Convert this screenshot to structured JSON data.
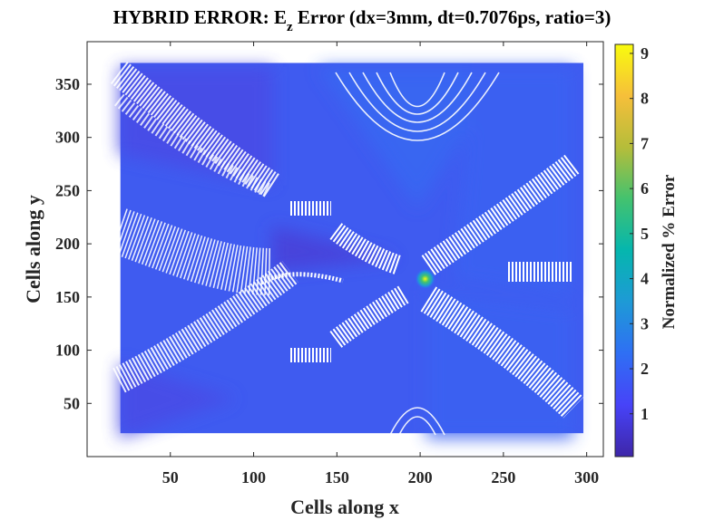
{
  "chart_data": {
    "type": "heatmap",
    "title": {
      "prefix": "HYBRID ERROR: E",
      "subscript": "z",
      "suffix": " Error (dx=3mm, dt=0.7076ps, ratio=3)"
    },
    "xlabel": "Cells along x",
    "ylabel": "Cells along y",
    "xlim": [
      0,
      310
    ],
    "ylim": [
      0,
      390
    ],
    "xticks": [
      50,
      100,
      150,
      200,
      250,
      300
    ],
    "yticks": [
      50,
      100,
      150,
      200,
      250,
      300,
      350
    ],
    "data_extent": {
      "x": [
        20,
        298
      ],
      "y": [
        22,
        370
      ]
    },
    "background_value": 1.4,
    "peak": {
      "x": 203,
      "y": 167,
      "value": 9.2
    },
    "colorbar": {
      "label": "Normalized % Error",
      "ticks": [
        1,
        2,
        3,
        4,
        5,
        6,
        7,
        8,
        9
      ],
      "range": [
        0.05,
        9.2
      ],
      "colormap": [
        "#3e26a8",
        "#4743f8",
        "#2f6ff4",
        "#1e9ad6",
        "#05b6ae",
        "#43c26f",
        "#b5bd3a",
        "#f6bf3a",
        "#f9fb0e"
      ]
    },
    "grid": false,
    "legend": "none"
  }
}
